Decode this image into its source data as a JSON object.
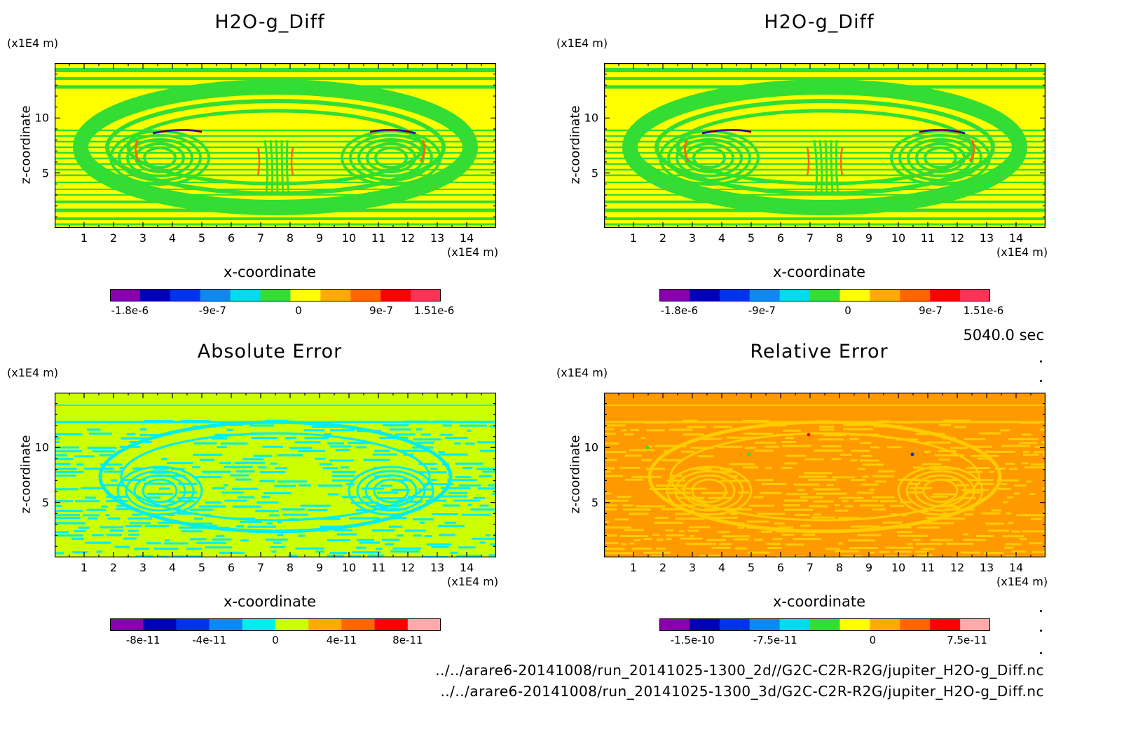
{
  "common": {
    "x_unit": "(x1E4 m)",
    "z_unit": "(x1E4 m)",
    "xlabel": "x-coordinate",
    "ylabel": "z-coordinate",
    "x_ticks": [
      "1",
      "2",
      "3",
      "4",
      "5",
      "6",
      "7",
      "8",
      "9",
      "10",
      "11",
      "12",
      "13",
      "14"
    ],
    "z_ticks": [
      "5",
      "10"
    ]
  },
  "timestamp": "5040.0 sec",
  "files": [
    "../../arare6-20141008/run_20141025-1300_2d//G2C-C2R-R2G/jupiter_H2O-g_Diff.nc",
    "../../arare6-20141008/run_20141025-1300_3d/G2C-C2R-R2G/jupiter_H2O-g_Diff.nc"
  ],
  "chart_data": [
    {
      "type": "heatmap",
      "title": "H2O-g_Diff",
      "xlabel": "x-coordinate",
      "ylabel": "z-coordinate",
      "xlim": [
        0,
        15
      ],
      "ylim": [
        0,
        15
      ],
      "background": "#ffff00",
      "pattern": "#33dd33",
      "colorbar": {
        "colors": [
          "#8800aa",
          "#0000bb",
          "#0033ee",
          "#1188ee",
          "#00ddee",
          "#33dd33",
          "#ffff00",
          "#ffaa00",
          "#ff6600",
          "#ff0000",
          "#ff3355"
        ],
        "tick_labels": [
          "-1.8e-6",
          "-9e-7",
          "0",
          "9e-7",
          "1.51e-6"
        ]
      }
    },
    {
      "type": "heatmap",
      "title": "H2O-g_Diff",
      "xlabel": "x-coordinate",
      "ylabel": "z-coordinate",
      "xlim": [
        0,
        15
      ],
      "ylim": [
        0,
        15
      ],
      "background": "#ffff00",
      "pattern": "#33dd33",
      "colorbar": {
        "colors": [
          "#8800aa",
          "#0000bb",
          "#0033ee",
          "#1188ee",
          "#00ddee",
          "#33dd33",
          "#ffff00",
          "#ffaa00",
          "#ff6600",
          "#ff0000",
          "#ff3355"
        ],
        "tick_labels": [
          "-1.8e-6",
          "-9e-7",
          "0",
          "9e-7",
          "1.51e-6"
        ]
      }
    },
    {
      "type": "heatmap",
      "title": "Absolute Error",
      "xlabel": "x-coordinate",
      "ylabel": "z-coordinate",
      "xlim": [
        0,
        15
      ],
      "ylim": [
        0,
        15
      ],
      "background": "#ccff00",
      "pattern": "#00eeee",
      "colorbar": {
        "colors": [
          "#8800aa",
          "#0000bb",
          "#0033ee",
          "#1188ee",
          "#00eeee",
          "#ccff00",
          "#ffaa00",
          "#ff6600",
          "#ff0000",
          "#ffaaaa"
        ],
        "tick_labels": [
          "-8e-11",
          "-4e-11",
          "0",
          "4e-11",
          "8e-11"
        ]
      }
    },
    {
      "type": "heatmap",
      "title": "Relative Error",
      "xlabel": "x-coordinate",
      "ylabel": "z-coordinate",
      "xlim": [
        0,
        15
      ],
      "ylim": [
        0,
        15
      ],
      "background": "#ff9900",
      "pattern": "#ffcc00",
      "colorbar": {
        "colors": [
          "#8800aa",
          "#0000bb",
          "#0033ee",
          "#1188ee",
          "#00ddee",
          "#33dd33",
          "#ffff00",
          "#ffaa00",
          "#ff6600",
          "#ff0000",
          "#ffaaaa"
        ],
        "tick_labels": [
          "-1.5e-10",
          "-7.5e-11",
          "0",
          "7.5e-11"
        ]
      }
    }
  ]
}
